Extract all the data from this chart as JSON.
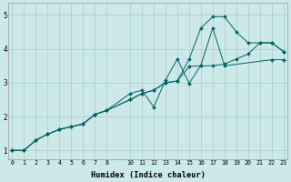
{
  "xlabel": "Humidex (Indice chaleur)",
  "bg_color": "#cce8e8",
  "grid_color": "#aacccc",
  "line_color": "#006666",
  "xlim": [
    -0.3,
    23.3
  ],
  "ylim": [
    0.75,
    5.35
  ],
  "xticks": [
    0,
    1,
    2,
    3,
    4,
    5,
    6,
    7,
    8,
    10,
    11,
    12,
    13,
    14,
    15,
    16,
    17,
    18,
    19,
    20,
    21,
    22,
    23
  ],
  "yticks": [
    1,
    2,
    3,
    4,
    5
  ],
  "line1_x": [
    0,
    1,
    2,
    3,
    4,
    5,
    6,
    7,
    8,
    10,
    11,
    12,
    13,
    14,
    15,
    16,
    17,
    18,
    19,
    20,
    21,
    22,
    23
  ],
  "line1_y": [
    1.0,
    1.0,
    1.3,
    1.48,
    1.62,
    1.7,
    1.78,
    2.06,
    2.18,
    2.5,
    2.68,
    2.78,
    3.0,
    3.05,
    3.48,
    3.5,
    3.5,
    3.55,
    3.7,
    3.85,
    4.18,
    4.18,
    3.92
  ],
  "line2_x": [
    0,
    1,
    2,
    3,
    4,
    5,
    6,
    7,
    8,
    10,
    11,
    12,
    13,
    14,
    15,
    16,
    17,
    18,
    19,
    20,
    21,
    22,
    23
  ],
  "line2_y": [
    1.0,
    1.0,
    1.3,
    1.48,
    1.62,
    1.7,
    1.78,
    2.06,
    2.18,
    2.5,
    2.68,
    2.78,
    3.0,
    3.05,
    3.7,
    4.62,
    4.95,
    4.95,
    4.5,
    4.18,
    4.18,
    4.18,
    3.92
  ],
  "line3_x": [
    0,
    1,
    2,
    3,
    4,
    5,
    6,
    7,
    8,
    10,
    11,
    12,
    13,
    14,
    15,
    16,
    17,
    18,
    22,
    23
  ],
  "line3_y": [
    1.0,
    1.0,
    1.3,
    1.48,
    1.62,
    1.7,
    1.78,
    2.06,
    2.18,
    2.68,
    2.78,
    2.28,
    3.08,
    3.7,
    2.98,
    3.52,
    4.62,
    3.5,
    3.68,
    3.68
  ]
}
